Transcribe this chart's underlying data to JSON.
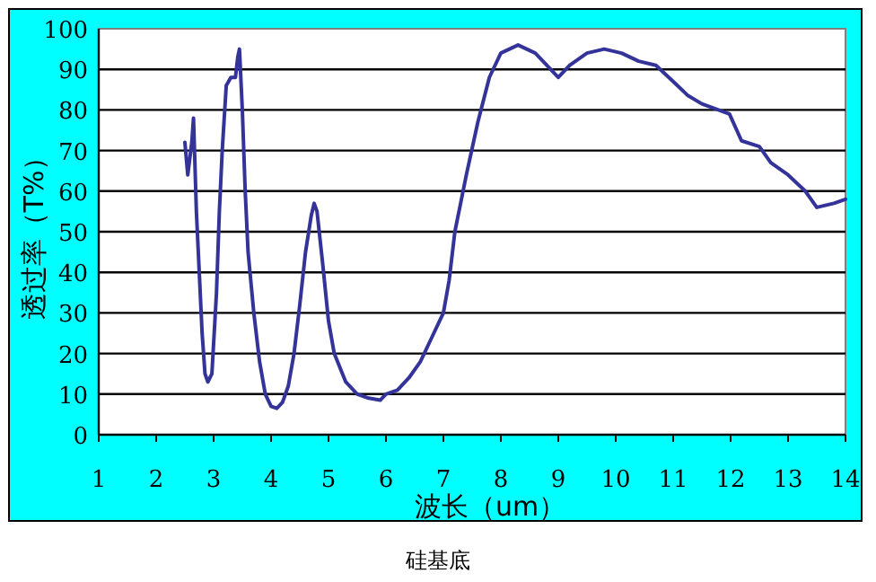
{
  "chart_data": {
    "type": "line",
    "title": "硅基底",
    "xlabel": "波长（um）",
    "ylabel": "透过率（T%）",
    "x": [
      2.5,
      2.55,
      2.62,
      2.65,
      2.7,
      2.75,
      2.8,
      2.85,
      2.9,
      2.97,
      3.05,
      3.1,
      3.15,
      3.22,
      3.3,
      3.38,
      3.42,
      3.45,
      3.5,
      3.55,
      3.6,
      3.7,
      3.8,
      3.9,
      4.0,
      4.1,
      4.2,
      4.3,
      4.4,
      4.5,
      4.6,
      4.7,
      4.75,
      4.8,
      4.9,
      5.0,
      5.1,
      5.3,
      5.5,
      5.7,
      5.9,
      6.0,
      6.2,
      6.4,
      6.6,
      6.8,
      7.0,
      7.1,
      7.2,
      7.4,
      7.6,
      7.8,
      8.0,
      8.3,
      8.6,
      8.8,
      9.0,
      9.2,
      9.5,
      9.8,
      10.1,
      10.4,
      10.7,
      11.0,
      11.26,
      11.5,
      11.98,
      12.19,
      12.5,
      12.7,
      13.0,
      13.3,
      13.5,
      13.8,
      14.0
    ],
    "series": [
      {
        "color": "#333399",
        "values": [
          72,
          64,
          72,
          78,
          55,
          40,
          25,
          15,
          13,
          15,
          35,
          55,
          70,
          86,
          88,
          88,
          93,
          95,
          80,
          60,
          45,
          30,
          18,
          10,
          7,
          6.5,
          8,
          12,
          20,
          32,
          45,
          54,
          57,
          55,
          42,
          28,
          20,
          13,
          10,
          9,
          8.5,
          10,
          11,
          14,
          18,
          24,
          30,
          38,
          50,
          64,
          77,
          88,
          94,
          96,
          94,
          91,
          88,
          91,
          94,
          95,
          94,
          92,
          91,
          87,
          83.5,
          81.5,
          79,
          72.4,
          71,
          67,
          64,
          60,
          56,
          57,
          58
        ]
      }
    ],
    "xlim": [
      1,
      14
    ],
    "ylim": [
      0,
      100
    ],
    "xticks": [
      1,
      2,
      3,
      4,
      5,
      6,
      7,
      8,
      9,
      10,
      11,
      12,
      13,
      14
    ],
    "yticks": [
      0,
      10,
      20,
      30,
      40,
      50,
      60,
      70,
      80,
      90,
      100
    ],
    "grid": "y"
  }
}
